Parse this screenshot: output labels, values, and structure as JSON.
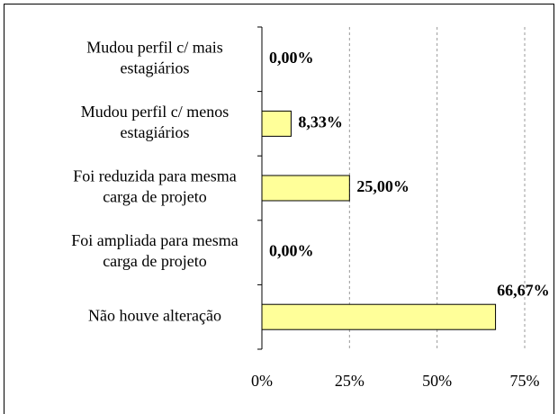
{
  "chart_data": {
    "type": "bar",
    "orientation": "horizontal",
    "categories": [
      [
        "Mudou perfil c/ mais",
        "estagiários"
      ],
      [
        "Mudou perfil c/ menos",
        "estagiários"
      ],
      [
        "Foi reduzida para mesma",
        "carga de projeto"
      ],
      [
        "Foi ampliada para mesma",
        "carga de projeto"
      ],
      [
        "Não houve alteração"
      ]
    ],
    "values": [
      0,
      8.33,
      25,
      0,
      66.67
    ],
    "value_labels": [
      "0,00%",
      "8,33%",
      "25,00%",
      "0,00%",
      "66,67%"
    ],
    "color": "#ffff99",
    "xlim": [
      0,
      75
    ],
    "xticks": [
      {
        "value": 0,
        "label": "0%"
      },
      {
        "value": 25,
        "label": "25%"
      },
      {
        "value": 50,
        "label": "50%"
      },
      {
        "value": 75,
        "label": "75%"
      }
    ],
    "grid": true
  }
}
